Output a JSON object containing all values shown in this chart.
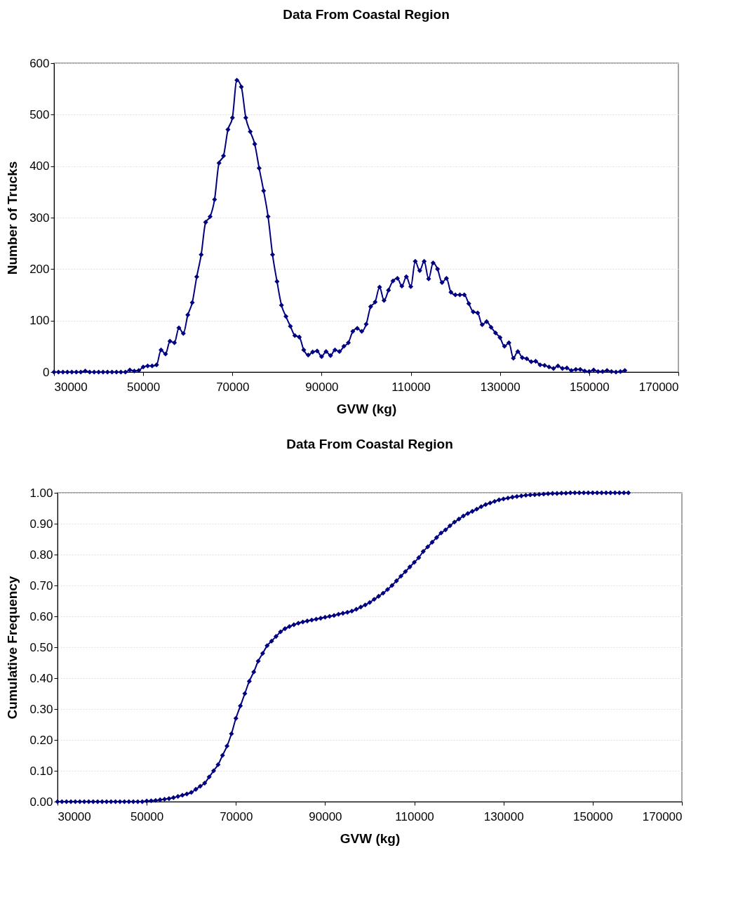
{
  "chart_data": [
    {
      "type": "line",
      "title": "Data From Coastal Region",
      "xlabel": "GVW (kg)",
      "ylabel": "Number of Trucks",
      "x": [
        30000,
        31000,
        32000,
        33000,
        34000,
        35000,
        36000,
        37000,
        38000,
        39000,
        40000,
        41000,
        42000,
        43000,
        44000,
        45000,
        46000,
        47000,
        48000,
        49000,
        50000,
        51000,
        52000,
        53000,
        54000,
        55000,
        56000,
        57000,
        58000,
        59000,
        60000,
        61000,
        62000,
        63000,
        64000,
        65000,
        66000,
        67000,
        68000,
        69000,
        70000,
        71000,
        72000,
        73000,
        74000,
        75000,
        76000,
        77000,
        78000,
        79000,
        80000,
        81000,
        82000,
        83000,
        84000,
        85000,
        86000,
        87000,
        88000,
        89000,
        90000,
        91000,
        92000,
        93000,
        94000,
        95000,
        96000,
        97000,
        98000,
        99000,
        100000,
        101000,
        102000,
        103000,
        104000,
        105000,
        106000,
        107000,
        108000,
        109000,
        110000,
        111000,
        112000,
        113000,
        114000,
        115000,
        116000,
        117000,
        118000,
        119000,
        120000,
        121000,
        122000,
        123000,
        124000,
        125000,
        126000,
        127000,
        128000,
        129000,
        130000,
        131000,
        132000,
        133000,
        134000,
        135000,
        136000,
        137000,
        138000,
        139000,
        140000,
        141000,
        142000,
        143000,
        144000,
        145000,
        146000,
        147000,
        148000,
        149000,
        150000,
        151000,
        152000,
        153000,
        154000,
        155000,
        156000,
        157000,
        158000
      ],
      "series": [
        {
          "color": "#000080",
          "values": [
            0,
            0,
            0,
            0,
            0,
            0,
            0,
            2,
            0,
            0,
            0,
            0,
            0,
            0,
            0,
            0,
            0,
            4,
            2,
            3,
            10,
            12,
            12,
            14,
            43,
            35,
            60,
            57,
            86,
            75,
            111,
            135,
            185,
            228,
            291,
            302,
            335,
            406,
            420,
            471,
            494,
            567,
            554,
            494,
            467,
            443,
            396,
            352,
            302,
            228,
            176,
            130,
            108,
            89,
            71,
            68,
            43,
            33,
            39,
            41,
            30,
            40,
            32,
            43,
            40,
            50,
            57,
            79,
            85,
            79,
            93,
            127,
            136,
            165,
            139,
            159,
            177,
            182,
            167,
            185,
            166,
            215,
            197,
            215,
            181,
            212,
            200,
            174,
            182,
            155,
            150,
            150,
            150,
            133,
            117,
            115,
            92,
            98,
            87,
            76,
            67,
            50,
            57,
            27,
            40,
            28,
            26,
            20,
            21,
            14,
            13,
            10,
            7,
            12,
            7,
            8,
            3,
            5,
            5,
            2,
            1,
            4,
            1,
            1,
            3,
            1,
            0,
            1,
            3
          ]
        }
      ],
      "xlim": [
        30000,
        170000
      ],
      "xticks": [
        30000,
        50000,
        70000,
        90000,
        110000,
        130000,
        150000,
        170000
      ],
      "ylim": [
        0,
        600
      ],
      "yticks": [
        0,
        100,
        200,
        300,
        400,
        500,
        600
      ],
      "grid": "y",
      "marker": "diamond",
      "line_style": "solid"
    },
    {
      "type": "line",
      "title": "Data From Coastal Region",
      "xlabel": "GVW (kg)",
      "ylabel": "Cumulative Frequency",
      "x": [
        30000,
        31000,
        32000,
        33000,
        34000,
        35000,
        36000,
        37000,
        38000,
        39000,
        40000,
        41000,
        42000,
        43000,
        44000,
        45000,
        46000,
        47000,
        48000,
        49000,
        50000,
        51000,
        52000,
        53000,
        54000,
        55000,
        56000,
        57000,
        58000,
        59000,
        60000,
        61000,
        62000,
        63000,
        64000,
        65000,
        66000,
        67000,
        68000,
        69000,
        70000,
        71000,
        72000,
        73000,
        74000,
        75000,
        76000,
        77000,
        78000,
        79000,
        80000,
        81000,
        82000,
        83000,
        84000,
        85000,
        86000,
        87000,
        88000,
        89000,
        90000,
        91000,
        92000,
        93000,
        94000,
        95000,
        96000,
        97000,
        98000,
        99000,
        100000,
        101000,
        102000,
        103000,
        104000,
        105000,
        106000,
        107000,
        108000,
        109000,
        110000,
        111000,
        112000,
        113000,
        114000,
        115000,
        116000,
        117000,
        118000,
        119000,
        120000,
        121000,
        122000,
        123000,
        124000,
        125000,
        126000,
        127000,
        128000,
        129000,
        130000,
        131000,
        132000,
        133000,
        134000,
        135000,
        136000,
        137000,
        138000,
        139000,
        140000,
        141000,
        142000,
        143000,
        144000,
        145000,
        146000,
        147000,
        148000,
        149000,
        150000,
        151000,
        152000,
        153000,
        154000,
        155000,
        156000,
        157000,
        158000
      ],
      "series": [
        {
          "color": "#000080",
          "values": [
            0,
            0,
            0,
            0,
            0,
            0,
            0,
            0,
            0,
            0,
            0,
            0,
            0,
            0,
            0,
            0,
            0,
            0,
            0,
            0,
            0.002,
            0.003,
            0.004,
            0.006,
            0.008,
            0.01,
            0.013,
            0.017,
            0.021,
            0.025,
            0.03,
            0.04,
            0.05,
            0.06,
            0.08,
            0.1,
            0.12,
            0.15,
            0.18,
            0.22,
            0.27,
            0.31,
            0.35,
            0.39,
            0.42,
            0.455,
            0.48,
            0.505,
            0.52,
            0.535,
            0.55,
            0.56,
            0.567,
            0.573,
            0.578,
            0.582,
            0.585,
            0.588,
            0.591,
            0.594,
            0.597,
            0.6,
            0.603,
            0.607,
            0.61,
            0.613,
            0.617,
            0.623,
            0.63,
            0.637,
            0.645,
            0.655,
            0.665,
            0.675,
            0.687,
            0.7,
            0.715,
            0.73,
            0.745,
            0.76,
            0.775,
            0.79,
            0.81,
            0.825,
            0.84,
            0.855,
            0.87,
            0.88,
            0.893,
            0.905,
            0.915,
            0.925,
            0.933,
            0.94,
            0.947,
            0.955,
            0.962,
            0.967,
            0.972,
            0.977,
            0.98,
            0.983,
            0.986,
            0.988,
            0.99,
            0.992,
            0.993,
            0.994,
            0.995,
            0.996,
            0.997,
            0.998,
            0.998,
            0.999,
            0.999,
            1,
            1,
            1,
            1,
            1,
            1,
            1,
            1,
            1,
            1,
            1,
            1,
            1,
            1
          ]
        }
      ],
      "xlim": [
        30000,
        170000
      ],
      "xticks": [
        30000,
        50000,
        70000,
        90000,
        110000,
        130000,
        150000,
        170000
      ],
      "ylim": [
        0,
        1
      ],
      "yticks": [
        {
          "value": 0,
          "label": "0.00"
        },
        {
          "value": 0.1,
          "label": "0.10"
        },
        {
          "value": 0.2,
          "label": "0.20"
        },
        {
          "value": 0.3,
          "label": "0.30"
        },
        {
          "value": 0.4,
          "label": "0.40"
        },
        {
          "value": 0.5,
          "label": "0.50"
        },
        {
          "value": 0.6,
          "label": "0.60"
        },
        {
          "value": 0.7,
          "label": "0.70"
        },
        {
          "value": 0.8,
          "label": "0.80"
        },
        {
          "value": 0.9,
          "label": "0.90"
        },
        {
          "value": 1,
          "label": "1.00"
        }
      ],
      "grid": "y",
      "marker": "diamond",
      "line_style": "solid"
    }
  ]
}
